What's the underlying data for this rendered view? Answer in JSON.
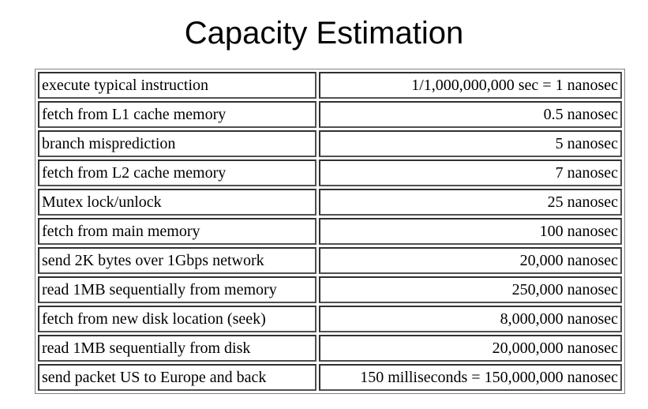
{
  "title": "Capacity Estimation",
  "rows": [
    {
      "operation": "execute typical instruction",
      "latency": "1/1,000,000,000 sec = 1 nanosec"
    },
    {
      "operation": "fetch from L1 cache memory",
      "latency": "0.5 nanosec"
    },
    {
      "operation": "branch misprediction",
      "latency": "5 nanosec"
    },
    {
      "operation": "fetch from L2 cache memory",
      "latency": "7 nanosec"
    },
    {
      "operation": "Mutex lock/unlock",
      "latency": "25 nanosec"
    },
    {
      "operation": "fetch from main memory",
      "latency": "100 nanosec"
    },
    {
      "operation": "send 2K bytes over 1Gbps network",
      "latency": "20,000 nanosec"
    },
    {
      "operation": "read 1MB sequentially from memory",
      "latency": "250,000 nanosec"
    },
    {
      "operation": "fetch from new disk location (seek)",
      "latency": "8,000,000 nanosec"
    },
    {
      "operation": "read 1MB sequentially from disk",
      "latency": "20,000,000 nanosec"
    },
    {
      "operation": "send packet US to Europe and back",
      "latency": "150 milliseconds = 150,000,000 nanosec"
    }
  ]
}
